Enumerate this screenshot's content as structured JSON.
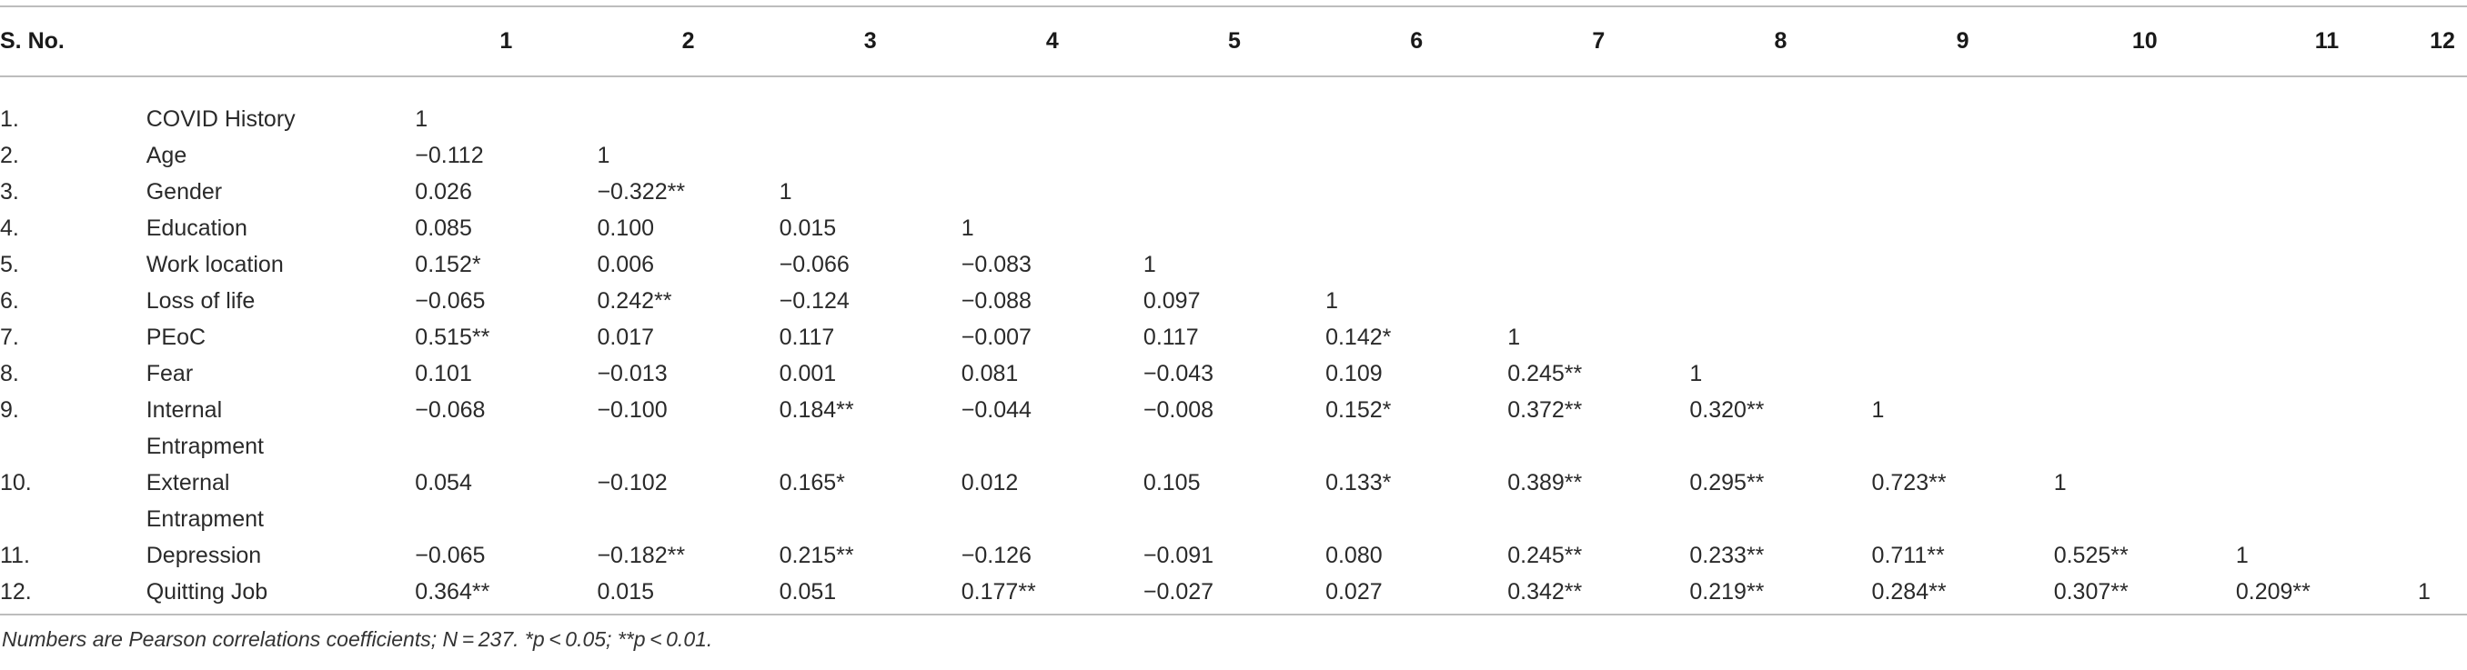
{
  "table": {
    "headers": [
      "S. No.",
      "",
      "1",
      "2",
      "3",
      "4",
      "5",
      "6",
      "7",
      "8",
      "9",
      "10",
      "11",
      "12"
    ],
    "rows": [
      {
        "sno": "1.",
        "var": "COVID History",
        "values": [
          "1",
          "",
          "",
          "",
          "",
          "",
          "",
          "",
          "",
          "",
          "",
          ""
        ]
      },
      {
        "sno": "2.",
        "var": "Age",
        "values": [
          "−0.112",
          "1",
          "",
          "",
          "",
          "",
          "",
          "",
          "",
          "",
          "",
          ""
        ]
      },
      {
        "sno": "3.",
        "var": "Gender",
        "values": [
          "0.026",
          "−0.322**",
          "1",
          "",
          "",
          "",
          "",
          "",
          "",
          "",
          "",
          ""
        ]
      },
      {
        "sno": "4.",
        "var": "Education",
        "values": [
          "0.085",
          "0.100",
          "0.015",
          "1",
          "",
          "",
          "",
          "",
          "",
          "",
          "",
          ""
        ]
      },
      {
        "sno": "5.",
        "var": "Work location",
        "values": [
          "0.152*",
          "0.006",
          "−0.066",
          "−0.083",
          "1",
          "",
          "",
          "",
          "",
          "",
          "",
          ""
        ]
      },
      {
        "sno": "6.",
        "var": "Loss of life",
        "values": [
          "−0.065",
          "0.242**",
          "−0.124",
          "−0.088",
          "0.097",
          "1",
          "",
          "",
          "",
          "",
          "",
          ""
        ]
      },
      {
        "sno": "7.",
        "var": "PEoC",
        "values": [
          "0.515**",
          "0.017",
          "0.117",
          "−0.007",
          "0.117",
          "0.142*",
          "1",
          "",
          "",
          "",
          "",
          ""
        ]
      },
      {
        "sno": "8.",
        "var": "Fear",
        "values": [
          "0.101",
          "−0.013",
          "0.001",
          "0.081",
          "−0.043",
          "0.109",
          "0.245**",
          "1",
          "",
          "",
          "",
          ""
        ]
      },
      {
        "sno": "9.",
        "var": "Internal Entrapment",
        "values": [
          "−0.068",
          "−0.100",
          "0.184**",
          "−0.044",
          "−0.008",
          "0.152*",
          "0.372**",
          "0.320**",
          "1",
          "",
          "",
          ""
        ]
      },
      {
        "sno": "10.",
        "var": "External Entrapment",
        "values": [
          "0.054",
          "−0.102",
          "0.165*",
          "0.012",
          "0.105",
          "0.133*",
          "0.389**",
          "0.295**",
          "0.723**",
          "1",
          "",
          ""
        ]
      },
      {
        "sno": "11.",
        "var": "Depression",
        "values": [
          "−0.065",
          "−0.182**",
          "0.215**",
          "−0.126",
          "−0.091",
          "0.080",
          "0.245**",
          "0.233**",
          "0.711**",
          "0.525**",
          "1",
          ""
        ]
      },
      {
        "sno": "12.",
        "var": "Quitting Job",
        "values": [
          "0.364**",
          "0.015",
          "0.051",
          "0.177**",
          "−0.027",
          "0.027",
          "0.342**",
          "0.219**",
          "0.284**",
          "0.307**",
          "0.209**",
          "1"
        ]
      }
    ]
  },
  "footnote": "Numbers are Pearson correlations coefficients; N = 237. *p < 0.05; **p < 0.01."
}
